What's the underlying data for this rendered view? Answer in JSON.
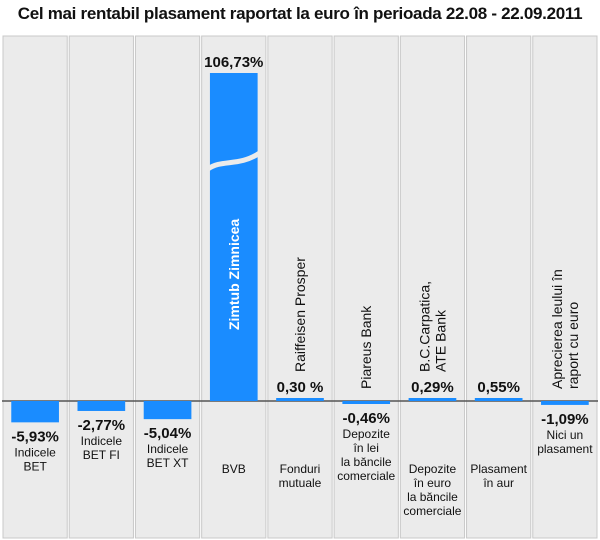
{
  "title": "Cel mai rentabil plasament raportat la euro în perioada 22.08 - 22.09.2011",
  "colors": {
    "bar": "#1a8cff",
    "panel": "#ebebeb",
    "border": "#c8c8c8",
    "axis": "#555555",
    "text": "#111111"
  },
  "chart_data": {
    "type": "bar",
    "title": "Cel mai rentabil plasament raportat la euro în perioada 22.08 - 22.09.2011",
    "axis_break": "Zimtub Zimnicea bar truncated (broken)",
    "items": [
      {
        "value": -5.93,
        "value_label": "-5,93%",
        "category_lines": [
          "Indicele",
          "BET"
        ],
        "inline_lines": []
      },
      {
        "value": -2.77,
        "value_label": "-2,77%",
        "category_lines": [
          "Indicele",
          "BET FI"
        ],
        "inline_lines": []
      },
      {
        "value": -5.04,
        "value_label": "-5,04%",
        "category_lines": [
          "Indicele",
          "BET XT"
        ],
        "inline_lines": []
      },
      {
        "value": 106.73,
        "value_label": "106,73%",
        "category_lines": [
          "BVB"
        ],
        "inline_lines": [
          "Zimtub Zimnicea"
        ]
      },
      {
        "value": 0.3,
        "value_label": "0,30 %",
        "category_lines": [
          "Fonduri",
          "mutuale"
        ],
        "inline_lines": [
          "Raiffeisen Prosper"
        ]
      },
      {
        "value": -0.46,
        "value_label": "-0,46%",
        "category_lines": [
          "Depozite",
          "în lei",
          "la băncile",
          "comerciale"
        ],
        "inline_lines": [
          "Piareus Bank"
        ]
      },
      {
        "value": 0.29,
        "value_label": "0,29%",
        "category_lines": [
          "Depozite",
          "în euro",
          "la băncile",
          "comerciale"
        ],
        "inline_lines": [
          "B.C.Carpatica,",
          "ATE Bank"
        ]
      },
      {
        "value": 0.55,
        "value_label": "0,55%",
        "category_lines": [
          "Plasament",
          "în aur"
        ],
        "inline_lines": []
      },
      {
        "value": -1.09,
        "value_label": "-1,09%",
        "category_lines": [
          "Nici un",
          "plasament"
        ],
        "inline_lines": [
          "Aprecierea leului în",
          "raport cu euro"
        ]
      }
    ]
  }
}
